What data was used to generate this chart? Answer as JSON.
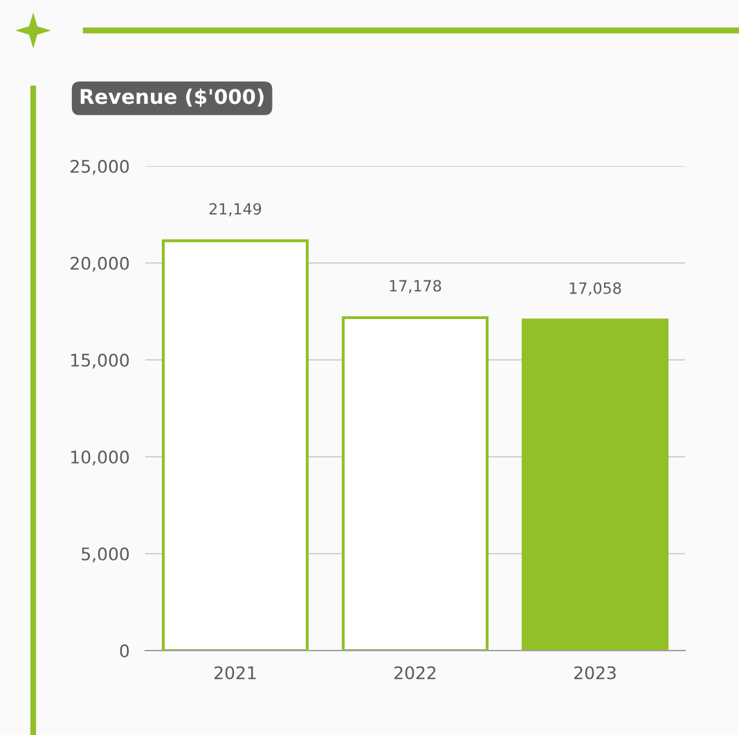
{
  "chart_data": {
    "type": "bar",
    "title": "Revenue ($'000)",
    "categories": [
      "2021",
      "2022",
      "2023"
    ],
    "values": [
      21149,
      17178,
      17058
    ],
    "colors": [
      "#ffffff",
      "#ffffff",
      "#92c027"
    ],
    "ylim": [
      0,
      25000
    ],
    "yticks": [
      {
        "value": 0,
        "label": "0"
      },
      {
        "value": 5000,
        "label": "5,000"
      },
      {
        "value": 10000,
        "label": "10,000"
      },
      {
        "value": 15000,
        "label": "15,000"
      },
      {
        "value": 20000,
        "label": "20,000"
      },
      {
        "value": 25000,
        "label": "25,000"
      }
    ],
    "value_labels": [
      "21,149",
      "17,178",
      "17,058"
    ],
    "grid": "y"
  }
}
